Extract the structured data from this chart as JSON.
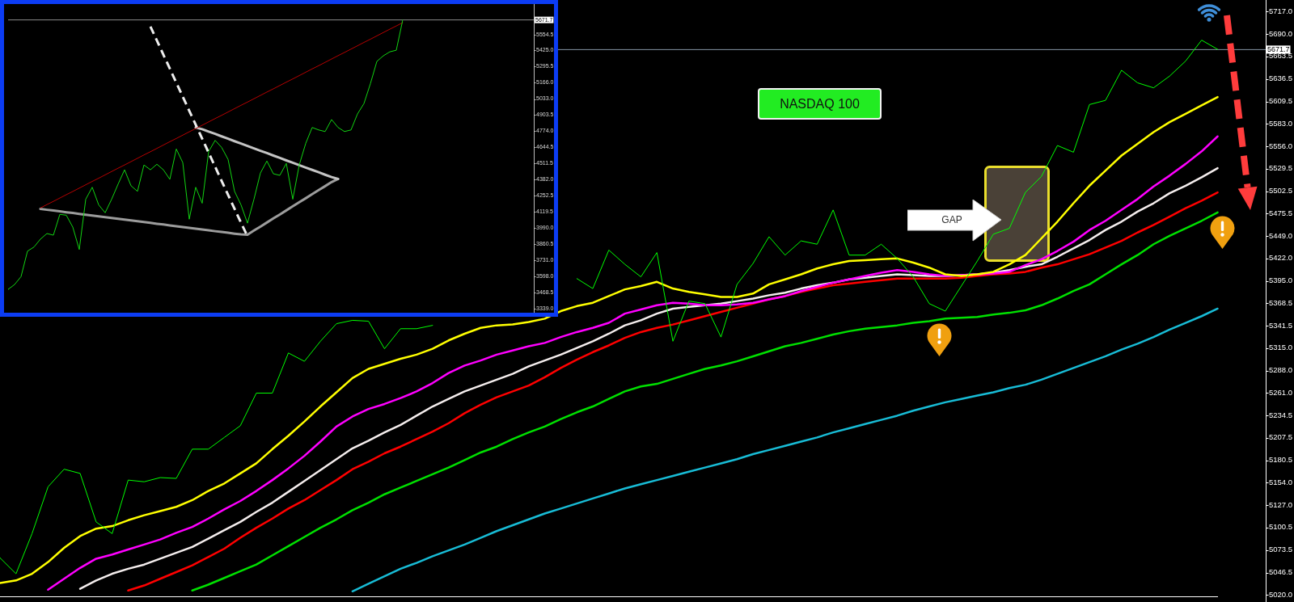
{
  "chart_data": [
    {
      "type": "line",
      "title": "NASDAQ 100",
      "categories": [
        null,
        null,
        null,
        null,
        null,
        null,
        null,
        null,
        null,
        null,
        null,
        null,
        null,
        null,
        null,
        null,
        null,
        null,
        null,
        null,
        null,
        null,
        null,
        null,
        null,
        null,
        null,
        null,
        null,
        null,
        null,
        null,
        null,
        null,
        null,
        null,
        null,
        null,
        null,
        null,
        null,
        null,
        null,
        null,
        null,
        null,
        null,
        null,
        null,
        null,
        null,
        null,
        null,
        null,
        null,
        null,
        null,
        null,
        null,
        null,
        null,
        null,
        null,
        null,
        null,
        null,
        null,
        null,
        null,
        null,
        null,
        null,
        null,
        null,
        null,
        null,
        null
      ],
      "series": [
        {
          "color": "#00ff00",
          "values": [
            5064,
            5045,
            5093,
            5149,
            5170,
            5165,
            5107,
            5093,
            5157,
            5155,
            5160,
            5159,
            5194,
            5194,
            5208,
            5222,
            5261,
            5261,
            5309,
            5299,
            5323,
            5344,
            5348,
            5347,
            5314,
            5338,
            5338,
            5342,
            null,
            null,
            null,
            null,
            null,
            null,
            null,
            null,
            5398,
            5386,
            5432,
            5415,
            5400,
            5429,
            5323,
            5371,
            5368,
            5328,
            5391,
            5416,
            5448,
            5426,
            5443,
            5439,
            5480,
            5426,
            5426,
            5439,
            5422,
            5400,
            5368,
            5359,
            5389,
            5419,
            5451,
            5458,
            5501,
            5520,
            5557,
            5549,
            5606,
            5611,
            5647,
            5632,
            5626,
            5640,
            5658,
            5683,
            5672
          ]
        },
        {
          "color": "#ffff00",
          "values": [
            5034,
            5037,
            5045,
            5059,
            5076,
            5090,
            5099,
            5102,
            5109,
            5115,
            5120,
            5125,
            5133,
            5144,
            5153,
            5165,
            5177,
            5194,
            5210,
            5227,
            5245,
            5262,
            5279,
            5290,
            5296,
            5302,
            5307,
            5314,
            5324,
            5332,
            5339,
            5342,
            5343,
            5346,
            5350,
            5359,
            5365,
            5369,
            5377,
            5385,
            5389,
            5394,
            5386,
            5382,
            5379,
            5376,
            5376,
            5380,
            5391,
            5397,
            5403,
            5410,
            5415,
            5419,
            5420,
            5421,
            5422,
            5417,
            5411,
            5403,
            5401,
            5403,
            5406,
            5415,
            5426,
            5446,
            5466,
            5488,
            5509,
            5527,
            5545,
            5559,
            5573,
            5585,
            5595,
            5605,
            5615
          ]
        },
        {
          "color": "#ff00ff",
          "values": [
            null,
            null,
            null,
            5026,
            5039,
            5052,
            5063,
            5068,
            5074,
            5080,
            5086,
            5094,
            5101,
            5111,
            5122,
            5132,
            5144,
            5157,
            5171,
            5186,
            5203,
            5221,
            5233,
            5242,
            5248,
            5255,
            5263,
            5273,
            5285,
            5294,
            5300,
            5307,
            5312,
            5317,
            5321,
            5328,
            5334,
            5339,
            5345,
            5356,
            5361,
            5366,
            5369,
            5368,
            5366,
            5366,
            5367,
            5369,
            5373,
            5377,
            5383,
            5388,
            5393,
            5397,
            5401,
            5405,
            5408,
            5406,
            5403,
            5401,
            5402,
            5403,
            5404,
            5406,
            5414,
            5421,
            5431,
            5442,
            5456,
            5467,
            5480,
            5493,
            5508,
            5521,
            5535,
            5550,
            5568
          ]
        },
        {
          "color": "#f5eeee",
          "values": [
            null,
            null,
            null,
            null,
            null,
            5027,
            5037,
            5045,
            5051,
            5056,
            5063,
            5070,
            5077,
            5087,
            5097,
            5107,
            5119,
            5130,
            5143,
            5156,
            5169,
            5182,
            5195,
            5204,
            5214,
            5223,
            5234,
            5245,
            5254,
            5263,
            5270,
            5277,
            5284,
            5293,
            5300,
            5307,
            5315,
            5323,
            5332,
            5342,
            5348,
            5356,
            5362,
            5364,
            5366,
            5368,
            5371,
            5374,
            5378,
            5381,
            5386,
            5390,
            5393,
            5397,
            5399,
            5401,
            5403,
            5402,
            5401,
            5401,
            5402,
            5403,
            5405,
            5408,
            5412,
            5415,
            5424,
            5434,
            5444,
            5456,
            5466,
            5478,
            5488,
            5500,
            5509,
            5519,
            5530
          ]
        },
        {
          "color": "#ff0000",
          "values": [
            null,
            null,
            null,
            null,
            null,
            null,
            null,
            null,
            5025,
            5031,
            5039,
            5047,
            5055,
            5065,
            5075,
            5088,
            5100,
            5111,
            5123,
            5133,
            5145,
            5157,
            5170,
            5179,
            5189,
            5197,
            5206,
            5215,
            5225,
            5237,
            5247,
            5256,
            5263,
            5270,
            5280,
            5291,
            5301,
            5310,
            5318,
            5327,
            5334,
            5339,
            5343,
            5348,
            5353,
            5358,
            5363,
            5368,
            5373,
            5377,
            5382,
            5386,
            5390,
            5392,
            5394,
            5396,
            5398,
            5398,
            5398,
            5398,
            5399,
            5401,
            5403,
            5404,
            5406,
            5411,
            5415,
            5421,
            5427,
            5435,
            5443,
            5453,
            5462,
            5472,
            5482,
            5491,
            5501
          ]
        },
        {
          "color": "#00e000",
          "values": [
            null,
            null,
            null,
            null,
            null,
            null,
            null,
            null,
            null,
            null,
            null,
            null,
            5025,
            5032,
            5040,
            5048,
            5056,
            5067,
            5078,
            5089,
            5100,
            5110,
            5121,
            5130,
            5140,
            5148,
            5156,
            5164,
            5172,
            5181,
            5190,
            5197,
            5206,
            5214,
            5221,
            5230,
            5238,
            5245,
            5254,
            5263,
            5269,
            5272,
            5278,
            5284,
            5290,
            5294,
            5299,
            5305,
            5311,
            5317,
            5321,
            5326,
            5331,
            5335,
            5338,
            5340,
            5342,
            5345,
            5347,
            5350,
            5351,
            5352,
            5355,
            5357,
            5360,
            5366,
            5374,
            5383,
            5391,
            5403,
            5415,
            5426,
            5439,
            5449,
            5458,
            5467,
            5477
          ]
        },
        {
          "color": "#18bcd6",
          "values": [
            null,
            null,
            null,
            null,
            null,
            null,
            null,
            null,
            null,
            null,
            null,
            null,
            null,
            null,
            null,
            null,
            null,
            null,
            null,
            null,
            null,
            null,
            5024,
            5033,
            5042,
            5051,
            5058,
            5066,
            5073,
            5080,
            5088,
            5096,
            5103,
            5110,
            5117,
            5123,
            5129,
            5135,
            5141,
            5147,
            5152,
            5157,
            5162,
            5167,
            5172,
            5177,
            5182,
            5188,
            5193,
            5198,
            5203,
            5208,
            5214,
            5219,
            5224,
            5229,
            5234,
            5240,
            5245,
            5250,
            5254,
            5258,
            5262,
            5267,
            5271,
            5277,
            5284,
            5291,
            5298,
            5305,
            5313,
            5320,
            5328,
            5337,
            5345,
            5353,
            5362
          ]
        }
      ],
      "ylim": [
        5018,
        5731
      ],
      "yticks": [
        {
          "value": 5717,
          "label": "5717.0"
        },
        {
          "value": 5690,
          "label": "5690.0"
        },
        5663.5,
        5636.5,
        5609.5,
        {
          "value": 5583,
          "label": "5583.0"
        },
        {
          "value": 5556,
          "label": "5556.0"
        },
        5529.5,
        5502.5,
        5475.5,
        {
          "value": 5449,
          "label": "5449.0"
        },
        {
          "value": 5422,
          "label": "5422.0"
        },
        {
          "value": 5395,
          "label": "5395.0"
        },
        5368.5,
        5341.5,
        {
          "value": 5315,
          "label": "5315.0"
        },
        {
          "value": 5288,
          "label": "5288.0"
        },
        {
          "value": 5261,
          "label": "5261.0"
        },
        5234.5,
        5207.5,
        5180.5,
        {
          "value": 5154,
          "label": "5154.0"
        },
        {
          "value": 5127,
          "label": "5127.0"
        },
        5100.5,
        5073.5,
        5046.5,
        {
          "value": 5020,
          "label": "5020.0"
        }
      ],
      "ref_lines": [
        {
          "axis": "y",
          "value": 5671.7,
          "label": "5671.7",
          "color": "#8494a4"
        }
      ],
      "annotations": [
        "GAP"
      ]
    },
    {
      "type": "line",
      "categories": [
        null,
        null,
        null,
        null,
        null,
        null,
        null,
        null,
        null,
        null,
        null,
        null,
        null,
        null,
        null,
        null,
        null,
        null,
        null,
        null,
        null,
        null,
        null,
        null,
        null,
        null,
        null,
        null,
        null,
        null,
        null,
        null,
        null,
        null,
        null,
        null,
        null,
        null,
        null,
        null,
        null,
        null,
        null,
        null,
        null,
        null,
        null,
        null,
        null,
        null,
        null,
        null,
        null,
        null,
        null,
        null,
        null,
        null,
        null,
        null,
        null,
        null
      ],
      "series": [
        {
          "color": "#12d412",
          "values": [
            3495,
            3534,
            3598,
            3804,
            3837,
            3901,
            3946,
            3933,
            4101,
            4094,
            3998,
            3817,
            4223,
            4320,
            4178,
            4114,
            4223,
            4345,
            4461,
            4332,
            4287,
            4500,
            4461,
            4506,
            4461,
            4384,
            4629,
            4519,
            4062,
            4320,
            4191,
            4609,
            4699,
            4642,
            4545,
            4287,
            4178,
            4030,
            4223,
            4435,
            4532,
            4429,
            4416,
            4513,
            4223,
            4500,
            4674,
            4803,
            4783,
            4770,
            4867,
            4803,
            4770,
            4783,
            4912,
            4996,
            5157,
            5337,
            5382,
            5414,
            5427,
            5672
          ]
        },
        {
          "color": "#b40000",
          "values": [
            null,
            null,
            null,
            null,
            null,
            4153,
            4180,
            4206,
            4233,
            4260,
            4286,
            4313,
            4340,
            4367,
            4393,
            4420,
            4447,
            4474,
            4500,
            4527,
            4554,
            4581,
            4607,
            4634,
            4661,
            4688,
            4714,
            4741,
            4768,
            4794,
            4821,
            4848,
            4875,
            4901,
            4928,
            4955,
            4982,
            5008,
            5035,
            5062,
            5089,
            5115,
            5142,
            5169,
            5195,
            5222,
            5249,
            5276,
            5302,
            5329,
            5356,
            5383,
            5409,
            5436,
            5463,
            5490,
            5516,
            5543,
            5570,
            5597,
            5623,
            5650
          ]
        },
        {
          "color": "#eeeeee",
          "line_style": "dashed",
          "values": [
            null,
            null,
            null,
            null,
            null,
            null,
            null,
            null,
            null,
            null,
            null,
            null,
            null,
            null,
            null,
            null,
            null,
            null,
            null,
            null,
            null,
            null,
            5618,
            5505,
            5391,
            5278,
            5165,
            5052,
            4938,
            4825,
            4712,
            4599,
            4486,
            4372,
            4259,
            4146,
            4033,
            3925,
            null,
            null,
            null,
            null,
            null,
            null,
            null,
            null,
            null,
            null,
            null,
            null,
            null,
            null,
            null,
            null,
            null,
            null,
            null,
            null,
            null,
            null,
            null,
            null
          ]
        },
        {
          "color": "#c4c4c4",
          "values": [
            null,
            null,
            null,
            null,
            null,
            null,
            null,
            null,
            null,
            null,
            null,
            null,
            null,
            null,
            null,
            null,
            null,
            null,
            null,
            null,
            null,
            null,
            null,
            null,
            null,
            null,
            null,
            null,
            null,
            4802,
            4789,
            4770,
            4751,
            4731,
            4712,
            4692,
            4673,
            4654,
            4634,
            4615,
            4596,
            4576,
            4557,
            4537,
            4518,
            4499,
            4479,
            4460,
            4441,
            4421,
            4402,
            4387,
            null,
            null,
            null,
            null,
            null,
            null,
            null,
            null,
            null,
            null
          ]
        },
        {
          "color": "#9c9c9c",
          "values": [
            null,
            null,
            null,
            null,
            null,
            4145,
            4138,
            4132,
            4125,
            4118,
            4112,
            4105,
            4098,
            4092,
            4085,
            4078,
            4072,
            4065,
            4059,
            4052,
            4045,
            4039,
            4032,
            4025,
            4019,
            4012,
            4005,
            3999,
            3992,
            3985,
            3979,
            3972,
            3965,
            3959,
            3952,
            3945,
            3939,
            3937,
            3970,
            4002,
            4035,
            4068,
            4100,
            4133,
            4166,
            4199,
            4231,
            4264,
            4297,
            4329,
            4362,
            4387,
            null,
            null,
            null,
            null,
            null,
            null,
            null,
            null,
            null,
            null
          ]
        }
      ],
      "ylim": [
        3313,
        5800
      ],
      "yticks": [
        5554.5,
        {
          "value": 5425,
          "label": "5425.0"
        },
        5295.5,
        {
          "value": 5166,
          "label": "5166.0"
        },
        {
          "value": 5033,
          "label": "5033.0"
        },
        4903.5,
        {
          "value": 4774,
          "label": "4774.0"
        },
        4644.5,
        4511.5,
        {
          "value": 4382,
          "label": "4382.0"
        },
        4252.5,
        4119.5,
        {
          "value": 3990,
          "label": "3990.0"
        },
        3860.5,
        {
          "value": 3731,
          "label": "3731.0"
        },
        {
          "value": 3598,
          "label": "3598.0"
        },
        3468.5,
        {
          "value": 3339,
          "label": "3339.0"
        }
      ],
      "ref_lines": [
        {
          "axis": "y",
          "value": 5671.7,
          "label": "5671.7",
          "color": "#8c8c8c"
        }
      ]
    }
  ]
}
